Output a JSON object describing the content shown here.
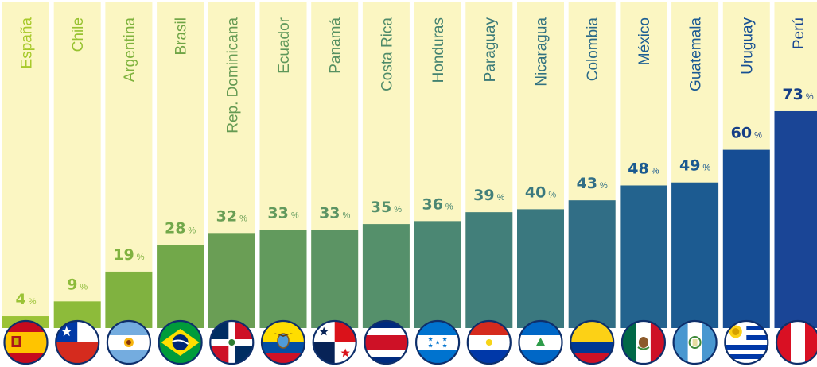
{
  "chart_data": {
    "type": "bar",
    "title": "",
    "xlabel": "",
    "ylabel": "",
    "unit": "%",
    "ylim": [
      0,
      100
    ],
    "categories": [
      "España",
      "Chile",
      "Argentina",
      "Brasil",
      "Rep. Dominicana",
      "Ecuador",
      "Panamá",
      "Costa Rica",
      "Honduras",
      "Paraguay",
      "Nicaragua",
      "Colombia",
      "México",
      "Guatemala",
      "Uruguay",
      "Perú"
    ],
    "values": [
      4,
      9,
      19,
      28,
      32,
      33,
      33,
      35,
      36,
      39,
      40,
      43,
      48,
      49,
      60,
      73
    ],
    "value_labels": [
      "4",
      "9",
      "19",
      "28",
      "32",
      "33",
      "33",
      "35",
      "36",
      "39",
      "40",
      "43",
      "48",
      "49",
      "60",
      "73"
    ],
    "bar_colors": [
      "#9bc336",
      "#8dbb3a",
      "#80b240",
      "#72a84a",
      "#6a9e55",
      "#629a5d",
      "#5c9464",
      "#55906b",
      "#4b8773",
      "#427f7a",
      "#3a787f",
      "#316e86",
      "#23638e",
      "#1c5b91",
      "#164d94",
      "#1a4596"
    ],
    "label_colors": [
      "#9bc336",
      "#8dbb3a",
      "#80b240",
      "#72a84a",
      "#6a9e55",
      "#629a5d",
      "#5c9464",
      "#55906b",
      "#4b8773",
      "#427f7a",
      "#3a787f",
      "#316e86",
      "#1a5a90",
      "#1a5a90",
      "#163f86",
      "#163f86"
    ],
    "country_label_colors": [
      "#a7c92a",
      "#97c230",
      "#7eb23c",
      "#6fa445",
      "#659a53",
      "#5e975a",
      "#569061",
      "#4f8b69",
      "#448270",
      "#3b7a78",
      "#337280",
      "#2b6a88",
      "#1d5f93",
      "#1a5a93",
      "#164f93",
      "#164593"
    ],
    "flags": [
      "spain-flag",
      "chile-flag",
      "argentina-flag",
      "brazil-flag",
      "dominican-republic-flag",
      "ecuador-flag",
      "panama-flag",
      "costa-rica-flag",
      "honduras-flag",
      "paraguay-flag",
      "nicaragua-flag",
      "colombia-flag",
      "mexico-flag",
      "guatemala-flag",
      "uruguay-flag",
      "peru-flag"
    ],
    "background_color": "#fbf6c2",
    "grid": false,
    "legend": "none"
  }
}
